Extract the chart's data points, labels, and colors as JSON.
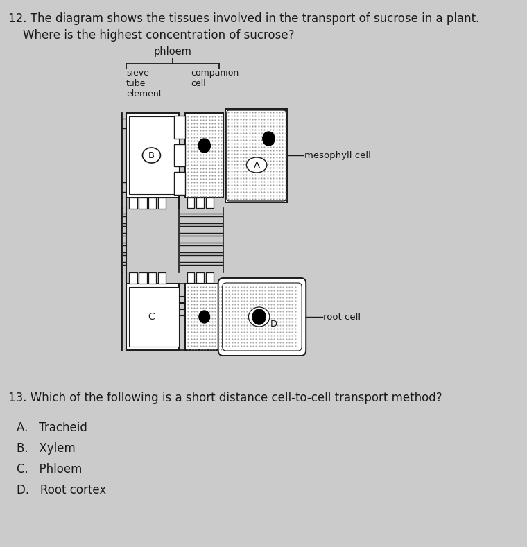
{
  "bg_color": "#cbcbcb",
  "white": "#ffffff",
  "light_gray": "#c0c0c0",
  "dark": "#1a1a1a",
  "stipple": "#b0b0b0",
  "q12_line1": "12. The diagram shows the tissues involved in the transport of sucrose in a plant.",
  "q12_line2": "    Where is the highest concentration of sucrose?",
  "q13": "13. Which of the following is a short distance cell-to-cell transport method?",
  "optA": "A.   Tracheid",
  "optB": "B.   Xylem",
  "optC": "C.   Phloem",
  "optD": "D.   Root cortex",
  "lbl_phloem": "phloem",
  "lbl_sieve": "sieve\ntube\nelement",
  "lbl_companion": "companion\ncell",
  "lbl_mesophyll": "mesophyll cell",
  "lbl_root_cell": "root cell",
  "lbl_A": "A",
  "lbl_B": "B",
  "lbl_C": "C",
  "lbl_D": "D"
}
